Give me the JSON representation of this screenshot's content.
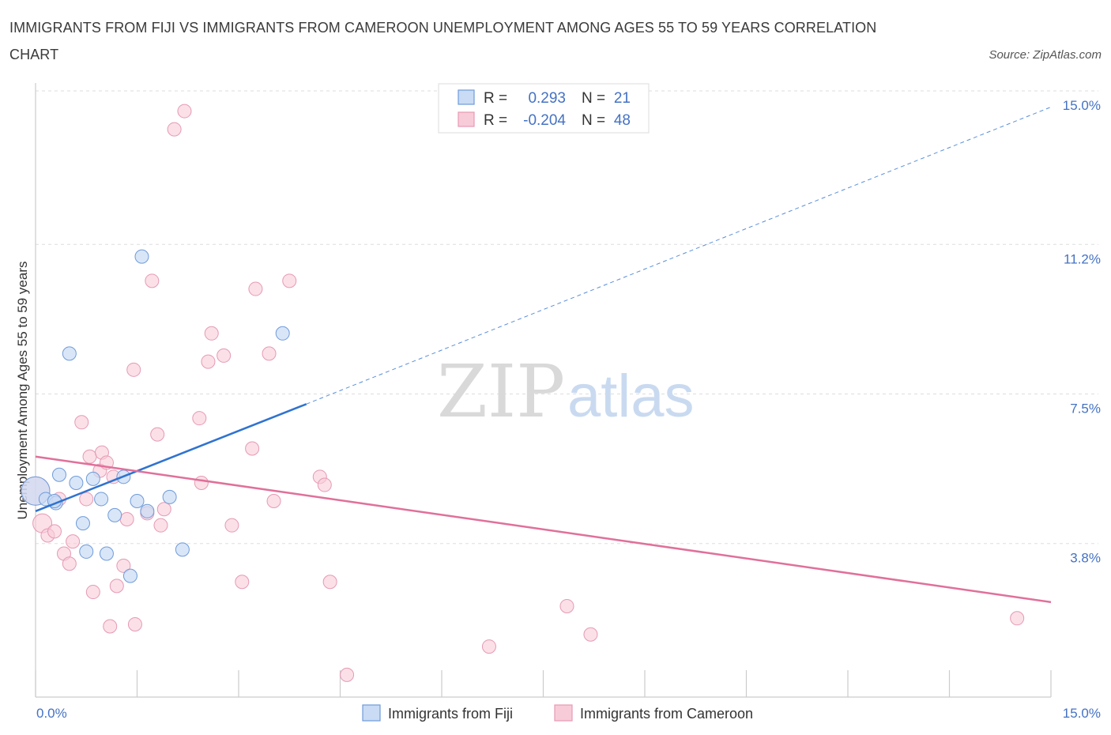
{
  "header": {
    "title": "IMMIGRANTS FROM FIJI VS IMMIGRANTS FROM CAMEROON UNEMPLOYMENT AMONG AGES 55 TO 59 YEARS CORRELATION CHART",
    "source": "Source: ZipAtlas.com"
  },
  "watermark": {
    "zip": "ZIP",
    "atlas": "atlas"
  },
  "colors": {
    "fiji_fill": "#c9dbf5",
    "fiji_stroke": "#6f9bd9",
    "fiji_line": "#2f73d0",
    "cameroon_fill": "#f8cbd8",
    "cameroon_stroke": "#e69ab3",
    "cameroon_line": "#e0709a",
    "grid": "#dddddd",
    "tick_text": "#4472c4"
  },
  "legend": {
    "rows": [
      {
        "r_label": "R =",
        "r_value": "0.293",
        "n_label": "N =",
        "n_value": "21"
      },
      {
        "r_label": "R =",
        "r_value": "-0.204",
        "n_label": "N =",
        "n_value": "48"
      }
    ]
  },
  "chart_data": {
    "type": "scatter",
    "title": "IMMIGRANTS FROM FIJI VS IMMIGRANTS FROM CAMEROON UNEMPLOYMENT AMONG AGES 55 TO 59 YEARS CORRELATION CHART",
    "xlabel": "",
    "ylabel": "Unemployment Among Ages 55 to 59 years",
    "xlim": [
      0,
      15
    ],
    "ylim": [
      0,
      15
    ],
    "x_tick_labels": [
      "0.0%",
      "15.0%"
    ],
    "y_ticks": [
      3.8,
      7.5,
      11.2,
      15.0
    ],
    "y_tick_labels": [
      "3.8%",
      "7.5%",
      "11.2%",
      "15.0%"
    ],
    "grid": true,
    "legend_position": "top-center",
    "series": [
      {
        "name": "Immigrants from Fiji",
        "points": [
          {
            "x": 0.0,
            "y": 5.1
          },
          {
            "x": 0.15,
            "y": 4.9
          },
          {
            "x": 0.3,
            "y": 4.8
          },
          {
            "x": 0.35,
            "y": 5.5
          },
          {
            "x": 0.5,
            "y": 8.5
          },
          {
            "x": 0.6,
            "y": 5.3
          },
          {
            "x": 0.7,
            "y": 4.3
          },
          {
            "x": 0.75,
            "y": 3.6
          },
          {
            "x": 0.85,
            "y": 5.4
          },
          {
            "x": 0.97,
            "y": 4.9
          },
          {
            "x": 1.05,
            "y": 3.55
          },
          {
            "x": 1.17,
            "y": 4.5
          },
          {
            "x": 1.3,
            "y": 5.45
          },
          {
            "x": 1.4,
            "y": 3.0
          },
          {
            "x": 1.5,
            "y": 4.85
          },
          {
            "x": 1.57,
            "y": 10.9
          },
          {
            "x": 1.65,
            "y": 4.6
          },
          {
            "x": 1.98,
            "y": 4.95
          },
          {
            "x": 2.17,
            "y": 3.65
          },
          {
            "x": 3.65,
            "y": 9.0
          },
          {
            "x": 0.28,
            "y": 4.85
          }
        ],
        "trend": {
          "x": [
            0,
            4.0
          ],
          "y": [
            4.6,
            7.25
          ],
          "extrapolated": {
            "x": [
              4.0,
              15.0
            ],
            "y": [
              7.25,
              14.6
            ]
          }
        }
      },
      {
        "name": "Immigrants from Cameroon",
        "points": [
          {
            "x": 0.0,
            "y": 5.1
          },
          {
            "x": 0.1,
            "y": 4.3
          },
          {
            "x": 0.18,
            "y": 4.0
          },
          {
            "x": 0.28,
            "y": 4.1
          },
          {
            "x": 0.35,
            "y": 4.9
          },
          {
            "x": 0.42,
            "y": 3.55
          },
          {
            "x": 0.5,
            "y": 3.3
          },
          {
            "x": 0.55,
            "y": 3.85
          },
          {
            "x": 0.68,
            "y": 6.8
          },
          {
            "x": 0.75,
            "y": 4.9
          },
          {
            "x": 0.8,
            "y": 5.95
          },
          {
            "x": 0.85,
            "y": 2.6
          },
          {
            "x": 0.95,
            "y": 5.6
          },
          {
            "x": 0.98,
            "y": 6.05
          },
          {
            "x": 1.05,
            "y": 5.8
          },
          {
            "x": 1.1,
            "y": 1.75
          },
          {
            "x": 1.15,
            "y": 5.45
          },
          {
            "x": 1.2,
            "y": 2.75
          },
          {
            "x": 1.3,
            "y": 3.25
          },
          {
            "x": 1.35,
            "y": 4.4
          },
          {
            "x": 1.45,
            "y": 8.1
          },
          {
            "x": 1.47,
            "y": 1.8
          },
          {
            "x": 1.65,
            "y": 4.55
          },
          {
            "x": 1.72,
            "y": 10.3
          },
          {
            "x": 1.8,
            "y": 6.5
          },
          {
            "x": 1.85,
            "y": 4.25
          },
          {
            "x": 1.9,
            "y": 4.65
          },
          {
            "x": 2.05,
            "y": 14.05
          },
          {
            "x": 2.2,
            "y": 14.5
          },
          {
            "x": 2.42,
            "y": 6.9
          },
          {
            "x": 2.45,
            "y": 5.3
          },
          {
            "x": 2.55,
            "y": 8.3
          },
          {
            "x": 2.6,
            "y": 9.0
          },
          {
            "x": 2.78,
            "y": 8.45
          },
          {
            "x": 2.9,
            "y": 4.25
          },
          {
            "x": 3.05,
            "y": 2.85
          },
          {
            "x": 3.2,
            "y": 6.15
          },
          {
            "x": 3.25,
            "y": 10.1
          },
          {
            "x": 3.45,
            "y": 8.5
          },
          {
            "x": 3.52,
            "y": 4.85
          },
          {
            "x": 3.75,
            "y": 10.3
          },
          {
            "x": 4.2,
            "y": 5.45
          },
          {
            "x": 4.27,
            "y": 5.25
          },
          {
            "x": 4.35,
            "y": 2.85
          },
          {
            "x": 4.6,
            "y": 0.55
          },
          {
            "x": 6.7,
            "y": 1.25
          },
          {
            "x": 7.85,
            "y": 2.25
          },
          {
            "x": 8.2,
            "y": 1.55
          },
          {
            "x": 14.5,
            "y": 1.95
          }
        ],
        "trend": {
          "x": [
            0,
            15.0
          ],
          "y": [
            5.95,
            2.35
          ]
        }
      }
    ]
  },
  "bottom_legend": [
    {
      "label": "Immigrants from Fiji"
    },
    {
      "label": "Immigrants from Cameroon"
    }
  ]
}
